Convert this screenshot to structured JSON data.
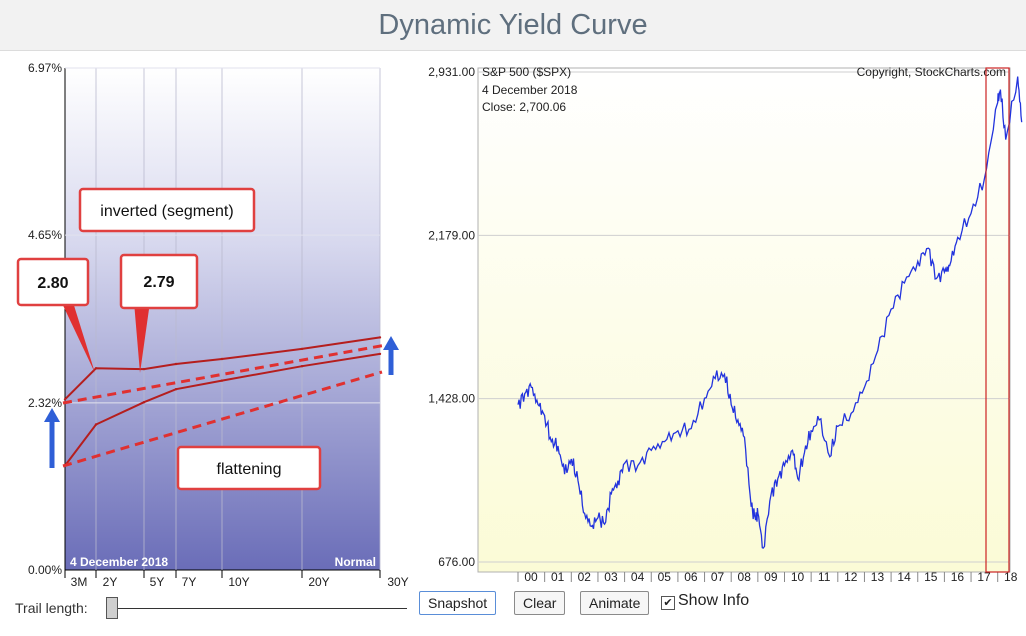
{
  "page": {
    "title": "Dynamic Yield Curve"
  },
  "colors": {
    "sp_line": "#2233dd",
    "curve_line": "#b51e1e",
    "trend": "#e03030",
    "arrow": "#2f5fd7",
    "marker": "#cc2222"
  },
  "yield_chart": {
    "y_ticks": [
      "0.00%",
      "2.32%",
      "4.65%",
      "6.97%"
    ],
    "x_ticks": [
      "3M",
      "2Y",
      "5Y",
      "7Y",
      "10Y",
      "20Y",
      "30Y"
    ],
    "date_label": "4  December 2018",
    "state_label": "Normal",
    "annotations": {
      "inverted": "inverted (segment)",
      "flattening": "flattening",
      "value_2y": "2.80",
      "value_5y": "2.79"
    }
  },
  "sp_chart": {
    "title": "S&P 500 ($SPX)",
    "copyright": "Copyright, StockCharts.com",
    "date": "4  December 2018",
    "close": "Close: 2,700.06",
    "y_ticks": [
      "676.00",
      "1,428.00",
      "2,179.00",
      "2,931.00"
    ],
    "x_ticks": [
      "00",
      "01",
      "02",
      "03",
      "04",
      "05",
      "06",
      "07",
      "08",
      "09",
      "10",
      "11",
      "12",
      "13",
      "14",
      "15",
      "16",
      "17",
      "18"
    ]
  },
  "chart_data": [
    {
      "type": "line",
      "x_axis": "maturity",
      "categories": [
        "3M",
        "2Y",
        "5Y",
        "7Y",
        "10Y",
        "20Y",
        "30Y"
      ],
      "ylim": [
        0,
        6.97
      ],
      "series": [
        {
          "values": [
            2.37,
            2.8,
            2.79,
            2.86,
            2.93,
            3.07,
            3.23
          ]
        },
        {
          "values": [
            1.45,
            2.02,
            2.33,
            2.51,
            2.63,
            2.83,
            3.0
          ]
        }
      ]
    },
    {
      "type": "line",
      "title": "S&P 500 ($SPX)",
      "ylim": [
        676,
        2931
      ],
      "x": [
        2000.0,
        2000.25,
        2000.5,
        2000.75,
        2001.0,
        2001.25,
        2001.5,
        2001.75,
        2002.0,
        2002.25,
        2002.5,
        2002.75,
        2003.0,
        2003.25,
        2003.5,
        2003.75,
        2004.0,
        2004.5,
        2005.0,
        2005.5,
        2006.0,
        2006.5,
        2007.0,
        2007.4,
        2007.75,
        2008.0,
        2008.25,
        2008.5,
        2008.75,
        2008.9,
        2009.0,
        2009.2,
        2009.5,
        2009.75,
        2010.0,
        2010.3,
        2010.5,
        2010.75,
        2011.0,
        2011.3,
        2011.7,
        2012.0,
        2012.5,
        2013.0,
        2013.5,
        2014.0,
        2014.5,
        2015.0,
        2015.4,
        2015.7,
        2016.0,
        2016.2,
        2016.5,
        2017.0,
        2017.5,
        2018.0,
        2018.1,
        2018.3,
        2018.75,
        2018.9
      ],
      "values": [
        1400,
        1450,
        1480,
        1400,
        1350,
        1230,
        1210,
        1080,
        1150,
        1050,
        900,
        840,
        880,
        850,
        990,
        1050,
        1130,
        1120,
        1190,
        1230,
        1280,
        1290,
        1430,
        1520,
        1540,
        1400,
        1330,
        1250,
        930,
        880,
        900,
        740,
        990,
        1060,
        1120,
        1190,
        1060,
        1180,
        1280,
        1330,
        1160,
        1300,
        1360,
        1480,
        1650,
        1840,
        1960,
        2060,
        2120,
        1980,
        2010,
        2040,
        2170,
        2280,
        2440,
        2790,
        2850,
        2620,
        2910,
        2700
      ]
    }
  ]
}
